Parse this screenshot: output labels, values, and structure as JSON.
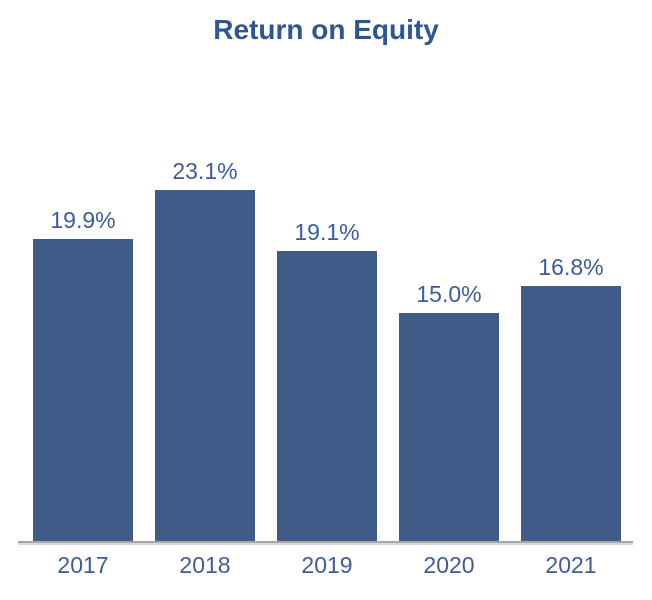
{
  "chart_data": {
    "type": "bar",
    "title": "Return on Equity",
    "categories": [
      "2017",
      "2018",
      "2019",
      "2020",
      "2021"
    ],
    "values": [
      19.9,
      23.1,
      19.1,
      15.0,
      16.8
    ],
    "value_labels": [
      "19.9%",
      "23.1%",
      "19.1%",
      "15.0%",
      "16.8%"
    ],
    "xlabel": "",
    "ylabel": "",
    "ylim": [
      0,
      24
    ],
    "grid": false,
    "legend": false,
    "x_axis_line": true,
    "y_axis_line": false,
    "colors": {
      "bar": "#3F5B88",
      "value_label": "#3D5C9C",
      "category_label": "#3D5C9C",
      "title": "#2E5693",
      "axis_line": "#A6A6A6",
      "axis_line_shadow": "#D9D9D9",
      "background": "#FFFFFF"
    }
  }
}
